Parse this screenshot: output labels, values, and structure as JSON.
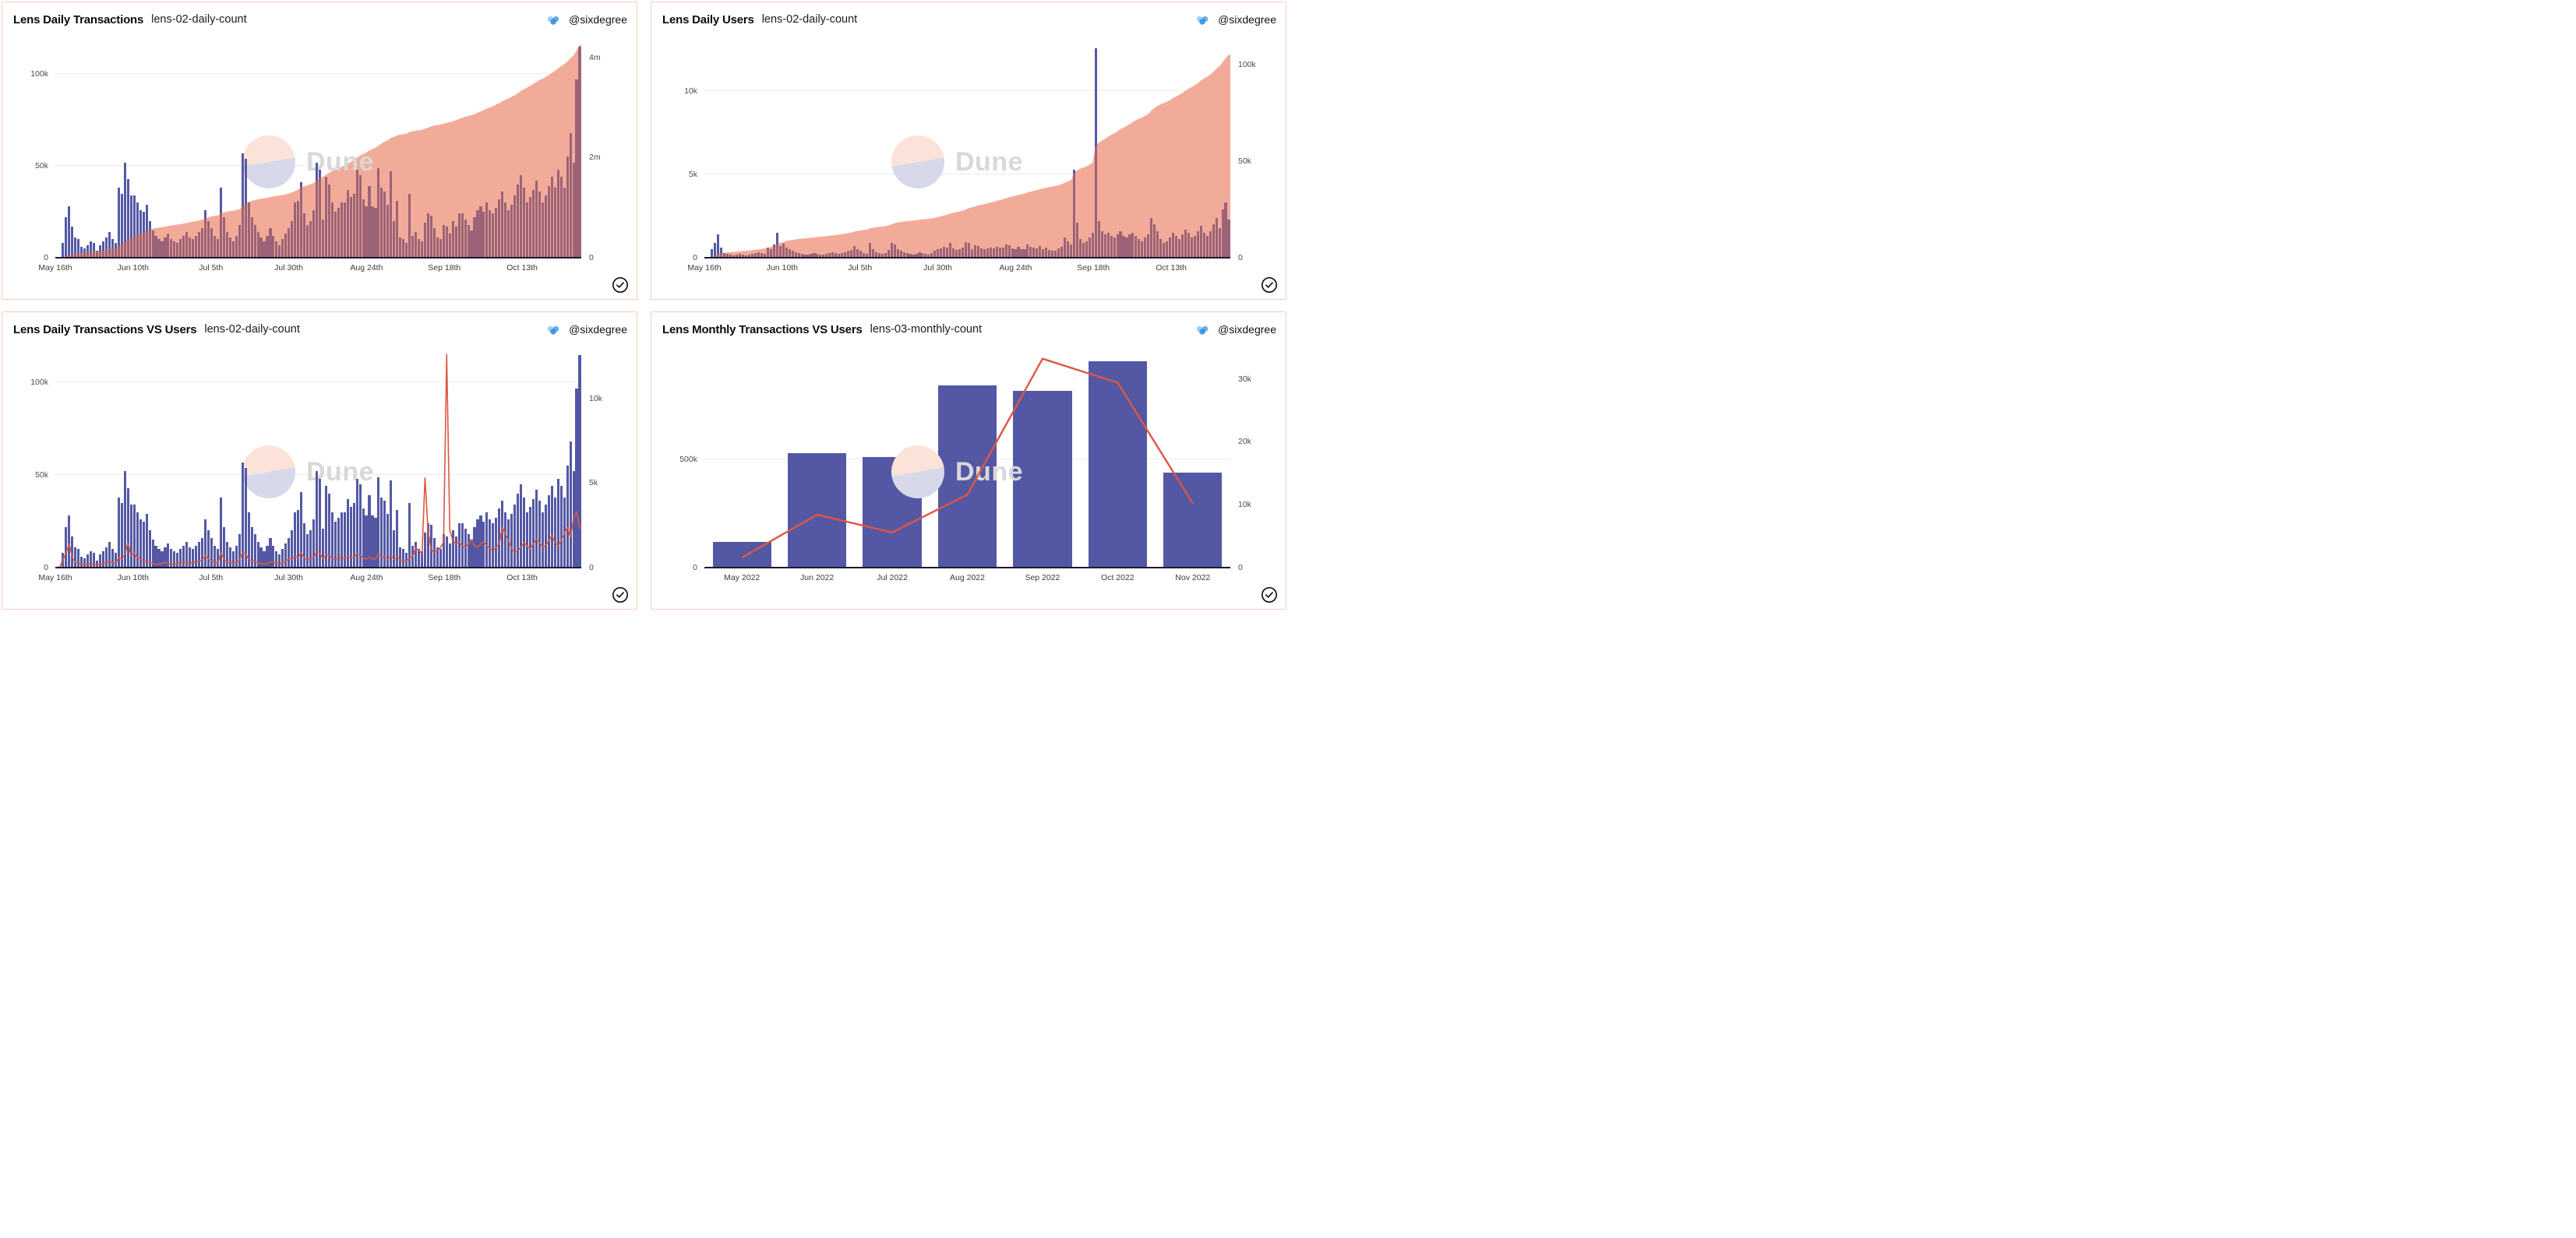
{
  "author": {
    "handle": "@sixdegree",
    "avatar_icon": "sixdegree-hexagons-icon"
  },
  "watermark": {
    "text": "Dune",
    "circle_top_color": "#fbe3da",
    "circle_bottom_color": "#d7d9ea",
    "text_color": "#d8d8d8"
  },
  "icons": {
    "verified_check": "check-circle-icon"
  },
  "colors": {
    "bar": "#5458a4",
    "bar_under_area": "#9c6378",
    "area": "#f2ab98",
    "line": "#dd5742",
    "grid": "#ececec",
    "panel_border": "#f6cbbf",
    "axis_text": "#4a4a4a",
    "baseline": "#1a1a33"
  },
  "chart_data": {
    "shared_series": {
      "daily_transactions_k": [
        0,
        0.3,
        8,
        22,
        28,
        17,
        11,
        10,
        6,
        5,
        7,
        9,
        8,
        4,
        7,
        9,
        11,
        14,
        10,
        8,
        38,
        35,
        52,
        43,
        34,
        34,
        30,
        26,
        25,
        29,
        20,
        15,
        12,
        10,
        9,
        11,
        13,
        10,
        9,
        8,
        10,
        12,
        14,
        11,
        10,
        12,
        14,
        16,
        26,
        20,
        16,
        12,
        10,
        38,
        22,
        14,
        11,
        9,
        12,
        18,
        57,
        54,
        30,
        22,
        18,
        14,
        11,
        9,
        12,
        16,
        12,
        9,
        7,
        10,
        13,
        16,
        20,
        30,
        31,
        41,
        24,
        18,
        20,
        26,
        52,
        48,
        21,
        44,
        40,
        30,
        25,
        27,
        30,
        30,
        37,
        33,
        35,
        48,
        45,
        32,
        28,
        39,
        28,
        27,
        49,
        38,
        36,
        29,
        47,
        20,
        31,
        11,
        10,
        8,
        35,
        12,
        14,
        10,
        9,
        19,
        24,
        23,
        16,
        11,
        10,
        18,
        17,
        13,
        20,
        17,
        24,
        24,
        21,
        18,
        15,
        22,
        26,
        28,
        25,
        30,
        26,
        24,
        27,
        32,
        36,
        30,
        26,
        29,
        34,
        40,
        45,
        38,
        30,
        33,
        37,
        42,
        36,
        30,
        34,
        39,
        44,
        38,
        48,
        44,
        38,
        55,
        68,
        52,
        97,
        115
      ],
      "daily_users_k": [
        0,
        0.05,
        0.5,
        0.9,
        1.4,
        0.6,
        0.3,
        0.25,
        0.2,
        0.15,
        0.2,
        0.25,
        0.2,
        0.15,
        0.2,
        0.25,
        0.3,
        0.35,
        0.3,
        0.25,
        0.6,
        0.5,
        0.8,
        1.5,
        0.7,
        0.85,
        0.6,
        0.5,
        0.4,
        0.35,
        0.3,
        0.25,
        0.2,
        0.2,
        0.25,
        0.3,
        0.25,
        0.2,
        0.2,
        0.25,
        0.3,
        0.35,
        0.3,
        0.25,
        0.3,
        0.35,
        0.4,
        0.45,
        0.7,
        0.5,
        0.4,
        0.3,
        0.25,
        0.9,
        0.5,
        0.35,
        0.3,
        0.25,
        0.3,
        0.45,
        0.9,
        0.8,
        0.5,
        0.4,
        0.35,
        0.3,
        0.25,
        0.2,
        0.25,
        0.35,
        0.3,
        0.25,
        0.2,
        0.3,
        0.4,
        0.5,
        0.55,
        0.65,
        0.6,
        0.9,
        0.55,
        0.45,
        0.5,
        0.6,
        0.95,
        0.9,
        0.5,
        0.75,
        0.7,
        0.55,
        0.5,
        0.55,
        0.6,
        0.55,
        0.65,
        0.6,
        0.6,
        0.8,
        0.75,
        0.55,
        0.5,
        0.65,
        0.5,
        0.5,
        0.8,
        0.65,
        0.6,
        0.55,
        0.7,
        0.5,
        0.6,
        0.45,
        0.4,
        0.4,
        0.55,
        0.65,
        1.2,
        1.0,
        0.8,
        5.3,
        2.1,
        1.1,
        0.9,
        1.0,
        1.2,
        1.5,
        12.6,
        2.2,
        1.6,
        1.4,
        1.5,
        1.3,
        1.2,
        1.4,
        1.6,
        1.3,
        1.2,
        1.4,
        1.5,
        1.3,
        1.1,
        1.0,
        1.2,
        1.4,
        2.4,
        2.0,
        1.6,
        1.1,
        0.9,
        1.0,
        1.2,
        1.5,
        1.3,
        1.1,
        1.4,
        1.7,
        1.5,
        1.2,
        1.3,
        1.6,
        1.9,
        1.5,
        1.3,
        1.6,
        2.0,
        2.4,
        1.8,
        2.9,
        3.3,
        2.3
      ]
    },
    "charts": [
      {
        "title": "Lens Daily Transactions",
        "subtitle": "lens-02-daily-count",
        "type": "bar+area",
        "x_axis": {
          "mode": "daily",
          "tick_labels": [
            "May 16th",
            "Jun 10th",
            "Jul 5th",
            "Jul 30th",
            "Aug 24th",
            "Sep 18th",
            "Oct 13th"
          ],
          "tick_interval_days": 25,
          "span_days": 170
        },
        "left_axis": {
          "labels": [
            "0",
            "50k",
            "100k"
          ],
          "values_k": [
            0,
            50,
            100
          ],
          "max_k": 118
        },
        "right_axis": {
          "labels": [
            "0",
            "2m",
            "4m"
          ],
          "values_k": [
            0,
            2000,
            4000
          ],
          "max_k": 4320
        },
        "bars": {
          "name": "daily transactions",
          "axis": "left",
          "ref": "daily_transactions_k"
        },
        "area": {
          "name": "cumulative transactions",
          "axis": "right",
          "derived": "running_sum_of_bars",
          "end_value_k": 4250
        }
      },
      {
        "title": "Lens Daily Users",
        "subtitle": "lens-02-daily-count",
        "type": "bar+area",
        "x_axis": {
          "mode": "daily",
          "tick_labels": [
            "May 16th",
            "Jun 10th",
            "Jul 5th",
            "Jul 30th",
            "Aug 24th",
            "Sep 18th",
            "Oct 13th"
          ],
          "tick_interval_days": 25,
          "span_days": 170
        },
        "left_axis": {
          "labels": [
            "0",
            "5k",
            "10k"
          ],
          "values_k": [
            0,
            5,
            10
          ],
          "max_k": 13
        },
        "right_axis": {
          "labels": [
            "0",
            "50k",
            "100k"
          ],
          "values_k": [
            0,
            50,
            100
          ],
          "max_k": 112
        },
        "bars": {
          "name": "daily users",
          "axis": "left",
          "ref": "daily_users_k"
        },
        "area": {
          "name": "cumulative users",
          "axis": "right",
          "derived": "running_sum_of_bars",
          "end_value_k": 105
        }
      },
      {
        "title": "Lens Daily Transactions VS Users",
        "subtitle": "lens-02-daily-count",
        "type": "bar+line",
        "x_axis": {
          "mode": "daily",
          "tick_labels": [
            "May 16th",
            "Jun 10th",
            "Jul 5th",
            "Jul 30th",
            "Aug 24th",
            "Sep 18th",
            "Oct 13th"
          ],
          "tick_interval_days": 25,
          "span_days": 170
        },
        "left_axis": {
          "labels": [
            "0",
            "50k",
            "100k"
          ],
          "values_k": [
            0,
            50,
            100
          ],
          "max_k": 117
        },
        "right_axis": {
          "labels": [
            "0",
            "5k",
            "10k"
          ],
          "values_k": [
            0,
            5,
            10
          ],
          "max_k": 12.8
        },
        "bars": {
          "name": "daily transactions",
          "axis": "left",
          "ref": "daily_transactions_k"
        },
        "line": {
          "name": "daily users",
          "axis": "right",
          "ref": "daily_users_k"
        }
      },
      {
        "title": "Lens Monthly Transactions VS Users",
        "subtitle": "lens-03-monthly-count",
        "type": "bar+line",
        "x_axis": {
          "mode": "monthly",
          "tick_labels": [
            "May 2022",
            "Jun 2022",
            "Jul 2022",
            "Aug 2022",
            "Sep 2022",
            "Oct 2022",
            "Nov 2022"
          ]
        },
        "left_axis": {
          "labels": [
            "0",
            "500k"
          ],
          "values_k": [
            0,
            500
          ],
          "max_k": 1000
        },
        "right_axis": {
          "labels": [
            "0",
            "10k",
            "20k",
            "30k"
          ],
          "values_k": [
            0,
            10,
            20,
            30
          ],
          "max_k": 34.4
        },
        "bars": {
          "name": "monthly transactions",
          "axis": "left",
          "values": [
            118,
            530,
            510,
            840,
            815,
            955,
            440
          ]
        },
        "line": {
          "name": "monthly users",
          "axis": "right",
          "values": [
            1.6,
            8.4,
            5.6,
            11.6,
            33.2,
            29.4,
            10.2
          ]
        }
      }
    ]
  }
}
